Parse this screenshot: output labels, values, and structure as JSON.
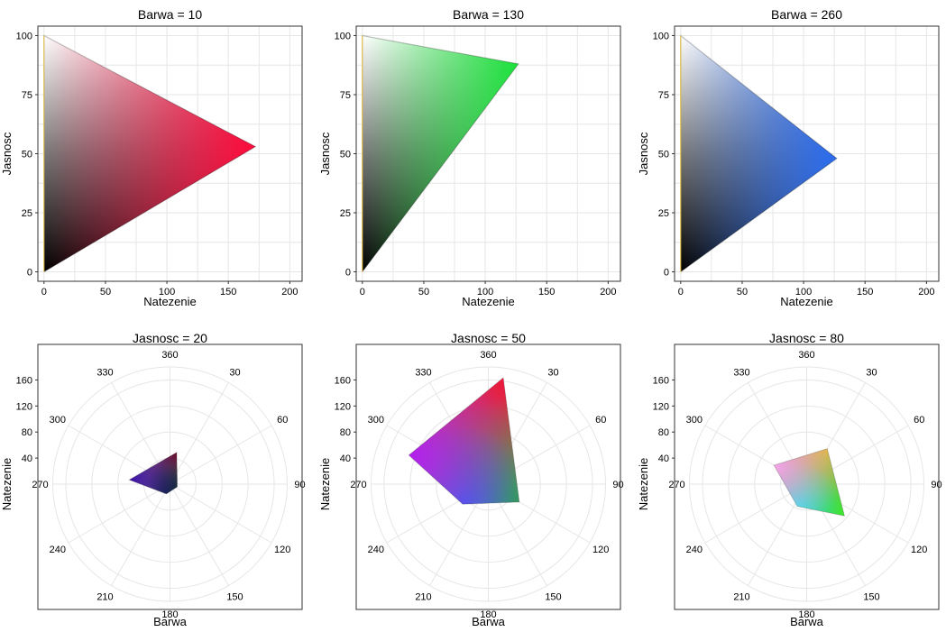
{
  "chart_data": [
    {
      "type": "area",
      "title": "Barwa = 10",
      "xlabel": "Natezenie",
      "ylabel": "Jasnosc",
      "xlim": [
        -5,
        210
      ],
      "ylim": [
        -4,
        104
      ],
      "xticks": [
        "0",
        "50",
        "100",
        "150",
        "200"
      ],
      "yticks": [
        "0",
        "25",
        "50",
        "75",
        "100"
      ],
      "grid": true,
      "hue": 10,
      "gamut": [
        [
          0,
          0
        ],
        [
          0,
          100
        ],
        [
          172,
          53
        ],
        [
          0,
          0
        ]
      ],
      "colors": {
        "black": "#000000",
        "white": "#ffffff",
        "tip": "#ff0a3c"
      }
    },
    {
      "type": "area",
      "title": "Barwa = 130",
      "xlabel": "Natezenie",
      "ylabel": "Jasnosc",
      "xlim": [
        -5,
        210
      ],
      "ylim": [
        -4,
        104
      ],
      "xticks": [
        "0",
        "50",
        "100",
        "150",
        "200"
      ],
      "yticks": [
        "0",
        "25",
        "50",
        "75",
        "100"
      ],
      "grid": true,
      "hue": 130,
      "gamut": [
        [
          0,
          0
        ],
        [
          0,
          100
        ],
        [
          127,
          88
        ],
        [
          0,
          0
        ]
      ],
      "colors": {
        "black": "#000000",
        "white": "#ffffff",
        "tip": "#1ae03a"
      }
    },
    {
      "type": "area",
      "title": "Barwa = 260",
      "xlabel": "Natezenie",
      "ylabel": "Jasnosc",
      "xlim": [
        -5,
        210
      ],
      "ylim": [
        -4,
        104
      ],
      "xticks": [
        "0",
        "50",
        "100",
        "150",
        "200"
      ],
      "yticks": [
        "0",
        "25",
        "50",
        "75",
        "100"
      ],
      "grid": true,
      "hue": 260,
      "gamut": [
        [
          0,
          0
        ],
        [
          0,
          100
        ],
        [
          127,
          48
        ],
        [
          0,
          0
        ]
      ],
      "colors": {
        "black": "#000000",
        "white": "#ffffff",
        "tip": "#2a6cf0"
      }
    },
    {
      "type": "polar",
      "title": "Jasnosc = 20",
      "xlabel": "Barwa",
      "ylabel": "Natezenie",
      "rlim": [
        0,
        180
      ],
      "rticks": [
        "40",
        "80",
        "120",
        "160"
      ],
      "angle_ticks": [
        "360",
        "30",
        "60",
        "90",
        "120",
        "150",
        "180",
        "210",
        "240",
        "270",
        "300",
        "330"
      ],
      "grid": true,
      "gamut": [
        {
          "hue": 12,
          "chroma": 50,
          "color": "#6a0c24"
        },
        {
          "hue": 110,
          "chroma": 12,
          "color": "#13381c"
        },
        {
          "hue": 200,
          "chroma": 16,
          "color": "#0c2a36"
        },
        {
          "hue": 276,
          "chroma": 63,
          "color": "#3a0ca8"
        }
      ]
    },
    {
      "type": "polar",
      "title": "Jasnosc = 50",
      "xlabel": "Barwa",
      "ylabel": "Natezenie",
      "rlim": [
        0,
        180
      ],
      "rticks": [
        "40",
        "80",
        "120",
        "160"
      ],
      "angle_ticks": [
        "360",
        "30",
        "60",
        "90",
        "120",
        "150",
        "180",
        "210",
        "240",
        "270",
        "300",
        "330"
      ],
      "grid": true,
      "gamut": [
        {
          "hue": 8,
          "chroma": 165,
          "color": "#f0153a"
        },
        {
          "hue": 120,
          "chroma": 55,
          "color": "#3aa82a"
        },
        {
          "hue": 232,
          "chroma": 50,
          "color": "#2a6ce8"
        },
        {
          "hue": 290,
          "chroma": 130,
          "color": "#b41ef0"
        }
      ]
    },
    {
      "type": "polar",
      "title": "Jasnosc = 80",
      "xlabel": "Barwa",
      "ylabel": "Natezenie",
      "rlim": [
        0,
        180
      ],
      "rticks": [
        "40",
        "80",
        "120",
        "160"
      ],
      "angle_ticks": [
        "360",
        "30",
        "60",
        "90",
        "120",
        "150",
        "180",
        "210",
        "240",
        "270",
        "300",
        "330"
      ],
      "grid": true,
      "gamut": [
        {
          "hue": 30,
          "chroma": 63,
          "color": "#f8b41e"
        },
        {
          "hue": 130,
          "chroma": 76,
          "color": "#3aea2a"
        },
        {
          "hue": 203,
          "chroma": 37,
          "color": "#1ae8ea"
        },
        {
          "hue": 300,
          "chroma": 58,
          "color": "#f4a6ea"
        }
      ]
    }
  ]
}
